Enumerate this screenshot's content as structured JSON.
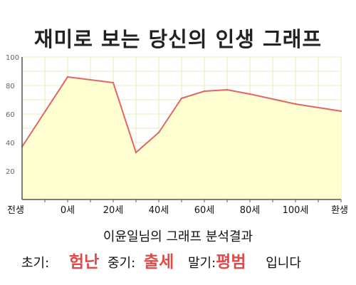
{
  "title": "재미로 보는 당신의 인생 그래프",
  "chart_data": {
    "type": "area",
    "title": "재미로 보는 당신의 인생 그래프",
    "xlabel": "",
    "ylabel": "",
    "ylim": [
      0,
      100
    ],
    "y_ticks": [
      20,
      40,
      60,
      80,
      100
    ],
    "x_tick_labels": [
      "전생",
      "0세",
      "20세",
      "40세",
      "60세",
      "80세",
      "100세",
      "환생"
    ],
    "grid": true,
    "colors": {
      "line": "#e06666",
      "fill": "#ffffcc",
      "grid": "#e8e8c0",
      "axis": "#555555"
    },
    "points": [
      {
        "x": "전생",
        "y": 37
      },
      {
        "x": "0세",
        "y": 86
      },
      {
        "x": "20세",
        "y": 82
      },
      {
        "x": "30세",
        "y": 33
      },
      {
        "x": "40세",
        "y": 47
      },
      {
        "x": "50세",
        "y": 71
      },
      {
        "x": "60세",
        "y": 76
      },
      {
        "x": "70세",
        "y": 77
      },
      {
        "x": "80세",
        "y": 74
      },
      {
        "x": "100세",
        "y": 67
      },
      {
        "x": "환생",
        "y": 62
      }
    ]
  },
  "result": {
    "heading": "이윤일님의 그래프 분석결과",
    "early_label": "초기:",
    "early_value": "험난",
    "mid_label": "중기:",
    "mid_value": "출세",
    "late_label": "말기:",
    "late_value": "평범",
    "suffix": "입니다"
  }
}
